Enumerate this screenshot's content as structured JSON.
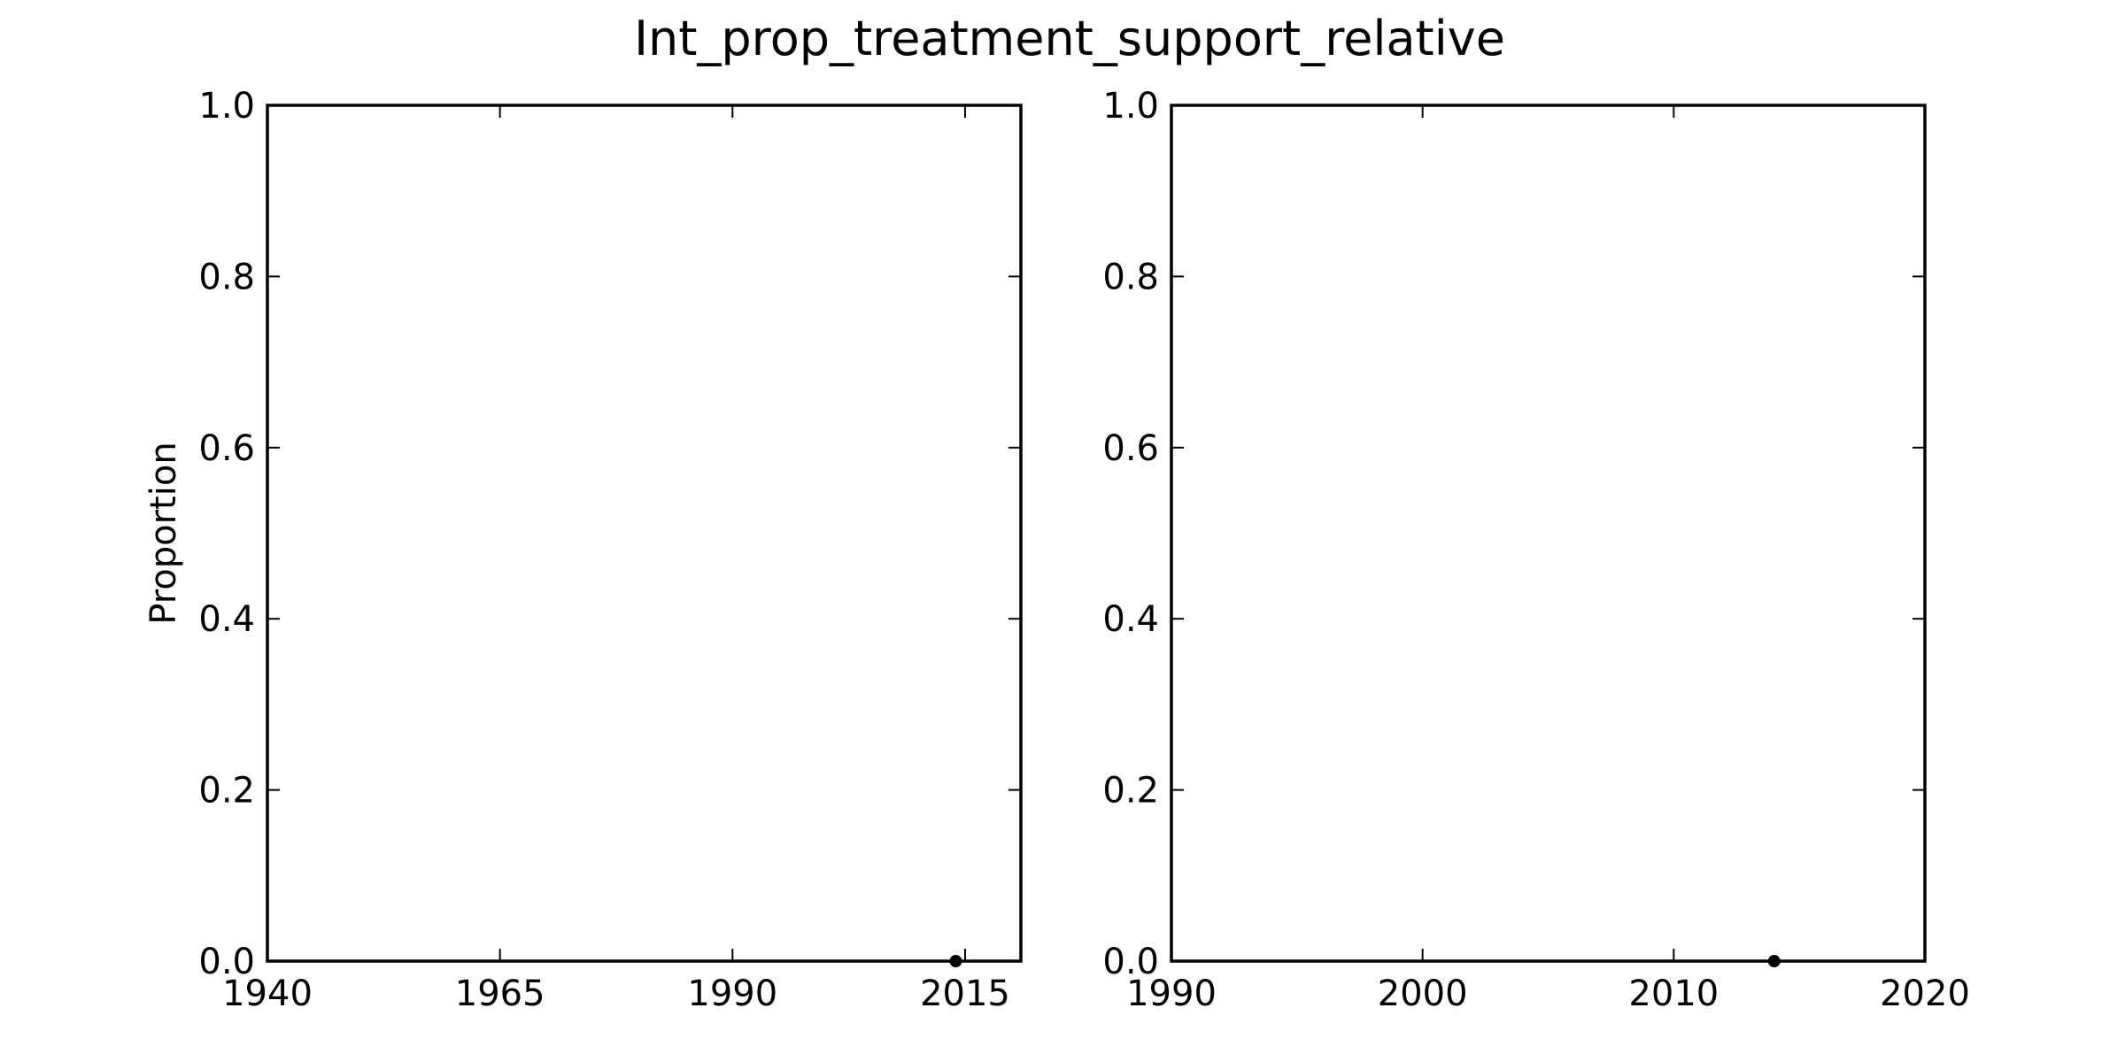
{
  "figure": {
    "title": "Int_prop_treatment_support_relative"
  },
  "chart_data": [
    {
      "type": "scatter",
      "title": "",
      "xlabel": "",
      "ylabel": "Proportion",
      "xlim": [
        1940,
        2021
      ],
      "ylim": [
        0.0,
        1.0
      ],
      "xticks": [
        1940,
        1965,
        1990,
        2015
      ],
      "xtick_labels": [
        "1940",
        "1965",
        "1990",
        "2015"
      ],
      "yticks": [
        0.0,
        0.2,
        0.4,
        0.6,
        0.8,
        1.0
      ],
      "ytick_labels": [
        "0.0",
        "0.2",
        "0.4",
        "0.6",
        "0.8",
        "1.0"
      ],
      "grid": false,
      "series": [
        {
          "color": "#000000",
          "points": [
            {
              "x": 2014,
              "y": 0.0
            }
          ]
        }
      ]
    },
    {
      "type": "scatter",
      "title": "",
      "xlabel": "",
      "ylabel": "",
      "xlim": [
        1990,
        2020
      ],
      "ylim": [
        0.0,
        1.0
      ],
      "xticks": [
        1990,
        2000,
        2010,
        2020
      ],
      "xtick_labels": [
        "1990",
        "2000",
        "2010",
        "2020"
      ],
      "yticks": [
        0.0,
        0.2,
        0.4,
        0.6,
        0.8,
        1.0
      ],
      "ytick_labels": [
        "0.0",
        "0.2",
        "0.4",
        "0.6",
        "0.8",
        "1.0"
      ],
      "grid": false,
      "series": [
        {
          "color": "#000000",
          "points": [
            {
              "x": 2014,
              "y": 0.0
            }
          ]
        }
      ]
    }
  ]
}
